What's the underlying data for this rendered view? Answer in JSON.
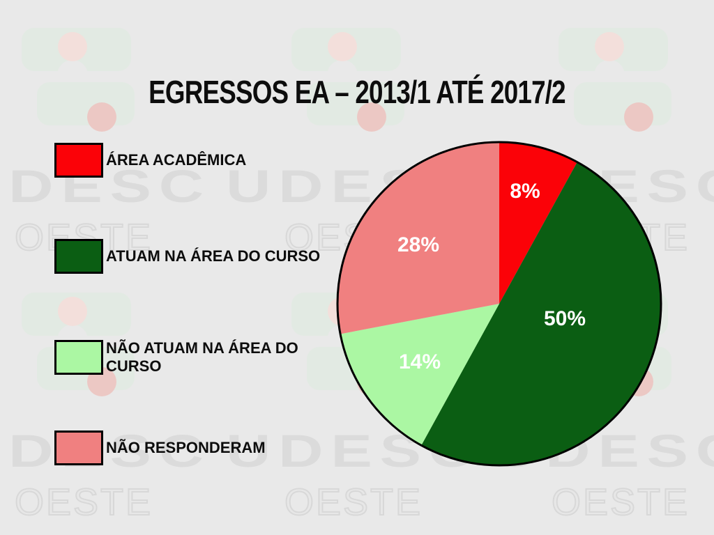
{
  "title": "EGRESSOS EA – 2013/1 ATÉ 2017/2",
  "watermark": {
    "brand": "UDESC",
    "campus": "OESTE"
  },
  "legend": [
    {
      "label": "ÁREA ACADÊMICA",
      "color": "#FB0208"
    },
    {
      "label": "ATUAM NA ÁREA DO CURSO",
      "color": "#0B5E13"
    },
    {
      "label": "NÃO ATUAM NA ÁREA DO CURSO",
      "color": "#ABF7A3"
    },
    {
      "label": "NÃO RESPONDERAM",
      "color": "#F08080"
    }
  ],
  "chart_data": {
    "type": "pie",
    "title": "EGRESSOS EA – 2013/1 ATÉ 2017/2",
    "slices": [
      {
        "label": "ÁREA ACADÊMICA",
        "value": 8,
        "display": "8%",
        "color": "#FB0208"
      },
      {
        "label": "ATUAM NA ÁREA DO CURSO",
        "value": 50,
        "display": "50%",
        "color": "#0B5E13"
      },
      {
        "label": "NÃO ATUAM NA ÁREA DO CURSO",
        "value": 14,
        "display": "14%",
        "color": "#ABF7A3"
      },
      {
        "label": "NÃO RESPONDERAM",
        "value": 28,
        "display": "28%",
        "color": "#F08080"
      }
    ],
    "start_angle_deg": -90,
    "direction": "clockwise",
    "outline_color": "#000000",
    "label_color": "#FFFFFF",
    "legend_position": "left"
  }
}
